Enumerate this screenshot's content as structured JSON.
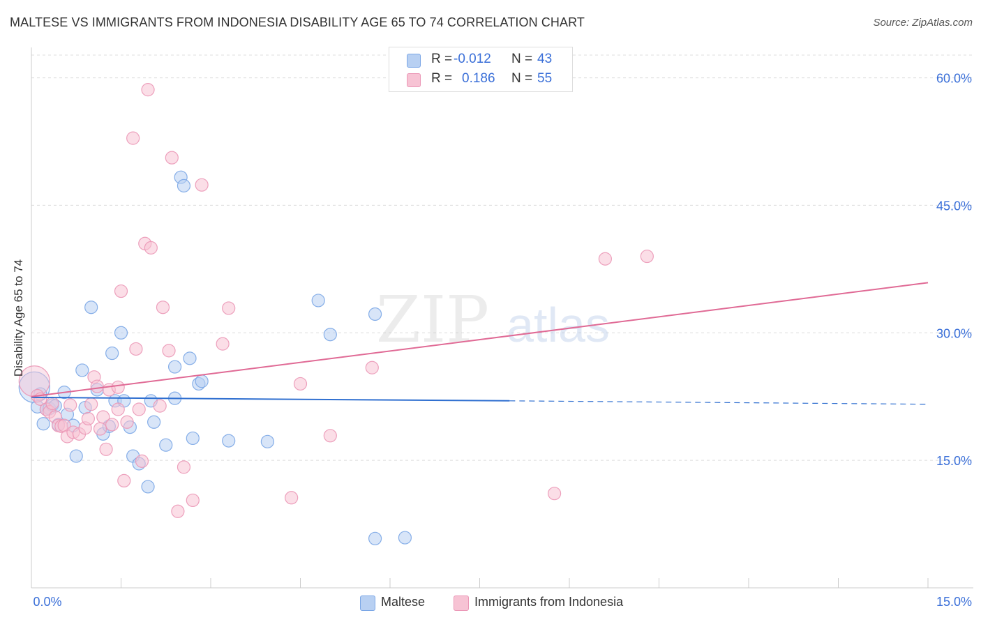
{
  "title": "MALTESE VS IMMIGRANTS FROM INDONESIA DISABILITY AGE 65 TO 74 CORRELATION CHART",
  "source": "Source: ZipAtlas.com",
  "legend": {
    "r_label": "R =",
    "n_label": "N =",
    "rows": [
      {
        "r": "-0.012",
        "n": "43"
      },
      {
        "r": "0.186",
        "n": "55"
      }
    ]
  },
  "watermark": {
    "zip": "ZIP",
    "atlas": "atlas"
  },
  "chart_data": {
    "type": "scatter",
    "title": "MALTESE VS IMMIGRANTS FROM INDONESIA DISABILITY AGE 65 TO 74 CORRELATION CHART",
    "xlabel": "",
    "ylabel": "Disability Age 65 to 74",
    "xlim": [
      0,
      15
    ],
    "ylim": [
      0,
      63
    ],
    "x_tick_labels": [
      "0.0%",
      "15.0%"
    ],
    "y_ticks": [
      15,
      30,
      45,
      60
    ],
    "y_tick_labels": [
      "15.0%",
      "30.0%",
      "45.0%",
      "60.0%"
    ],
    "series": [
      {
        "name": "Maltese",
        "color": "#7aa6e6",
        "fill": "#b8d0f2",
        "trend_color": "#2f6fd0",
        "trend": {
          "x0": 0,
          "y0": 22.4,
          "x1": 8.0,
          "y1": 22.0,
          "x_dash_end": 15,
          "y_dash_end": 21.6
        },
        "points": [
          [
            0.05,
            23.6
          ],
          [
            0.1,
            21.3
          ],
          [
            0.15,
            22.8
          ],
          [
            0.2,
            19.3
          ],
          [
            0.25,
            21.0
          ],
          [
            0.3,
            21.1
          ],
          [
            0.35,
            21.5
          ],
          [
            0.4,
            21.4
          ],
          [
            0.45,
            19.2
          ],
          [
            0.55,
            23.0
          ],
          [
            0.6,
            20.4
          ],
          [
            0.7,
            19.1
          ],
          [
            0.75,
            15.5
          ],
          [
            0.85,
            25.6
          ],
          [
            0.9,
            21.2
          ],
          [
            1.0,
            33.0
          ],
          [
            1.1,
            23.3
          ],
          [
            1.2,
            18.1
          ],
          [
            1.3,
            19.0
          ],
          [
            1.35,
            27.6
          ],
          [
            1.4,
            22.0
          ],
          [
            1.5,
            30.0
          ],
          [
            1.55,
            22.0
          ],
          [
            1.65,
            18.9
          ],
          [
            1.7,
            15.5
          ],
          [
            1.8,
            14.6
          ],
          [
            1.95,
            11.9
          ],
          [
            2.0,
            22.0
          ],
          [
            2.05,
            19.5
          ],
          [
            2.25,
            16.8
          ],
          [
            2.4,
            22.3
          ],
          [
            2.4,
            26.0
          ],
          [
            2.5,
            48.3
          ],
          [
            2.55,
            47.3
          ],
          [
            2.65,
            27.0
          ],
          [
            2.7,
            17.6
          ],
          [
            2.8,
            24.0
          ],
          [
            2.85,
            24.3
          ],
          [
            3.3,
            17.3
          ],
          [
            3.95,
            17.2
          ],
          [
            4.8,
            33.8
          ],
          [
            5.0,
            29.8
          ],
          [
            5.75,
            32.2
          ],
          [
            5.75,
            5.8
          ],
          [
            6.25,
            5.9
          ]
        ]
      },
      {
        "name": "Immigrants from Indonesia",
        "color": "#eb97b6",
        "fill": "#f7c3d4",
        "trend_color": "#e06a95",
        "trend": {
          "x0": 0,
          "y0": 22.5,
          "x1": 15,
          "y1": 35.9
        },
        "points": [
          [
            0.05,
            24.3
          ],
          [
            0.1,
            22.6
          ],
          [
            0.15,
            22.2
          ],
          [
            0.25,
            21.0
          ],
          [
            0.3,
            20.7
          ],
          [
            0.35,
            21.7
          ],
          [
            0.4,
            20.1
          ],
          [
            0.45,
            19.1
          ],
          [
            0.5,
            19.0
          ],
          [
            0.55,
            19.1
          ],
          [
            0.6,
            17.8
          ],
          [
            0.65,
            21.5
          ],
          [
            0.7,
            18.3
          ],
          [
            0.8,
            18.1
          ],
          [
            0.9,
            18.8
          ],
          [
            0.95,
            19.9
          ],
          [
            1.0,
            21.6
          ],
          [
            1.05,
            24.8
          ],
          [
            1.1,
            23.7
          ],
          [
            1.15,
            18.7
          ],
          [
            1.2,
            20.1
          ],
          [
            1.25,
            16.3
          ],
          [
            1.3,
            23.3
          ],
          [
            1.35,
            19.2
          ],
          [
            1.45,
            23.6
          ],
          [
            1.45,
            21.0
          ],
          [
            1.5,
            34.9
          ],
          [
            1.55,
            12.6
          ],
          [
            1.6,
            19.5
          ],
          [
            1.7,
            52.9
          ],
          [
            1.75,
            28.1
          ],
          [
            1.8,
            21.0
          ],
          [
            1.85,
            14.9
          ],
          [
            1.9,
            40.5
          ],
          [
            1.95,
            58.6
          ],
          [
            2.0,
            40.0
          ],
          [
            2.15,
            21.4
          ],
          [
            2.2,
            33.0
          ],
          [
            2.3,
            27.9
          ],
          [
            2.35,
            50.6
          ],
          [
            2.45,
            9.0
          ],
          [
            2.55,
            14.2
          ],
          [
            2.7,
            10.3
          ],
          [
            2.85,
            47.4
          ],
          [
            3.2,
            28.7
          ],
          [
            3.3,
            32.9
          ],
          [
            4.35,
            10.6
          ],
          [
            4.5,
            24.0
          ],
          [
            5.0,
            17.9
          ],
          [
            5.7,
            25.9
          ],
          [
            8.75,
            11.1
          ],
          [
            9.6,
            38.7
          ],
          [
            10.3,
            39.0
          ]
        ]
      }
    ]
  },
  "bottom_legend": [
    {
      "label": "Maltese"
    },
    {
      "label": "Immigrants from Indonesia"
    }
  ]
}
